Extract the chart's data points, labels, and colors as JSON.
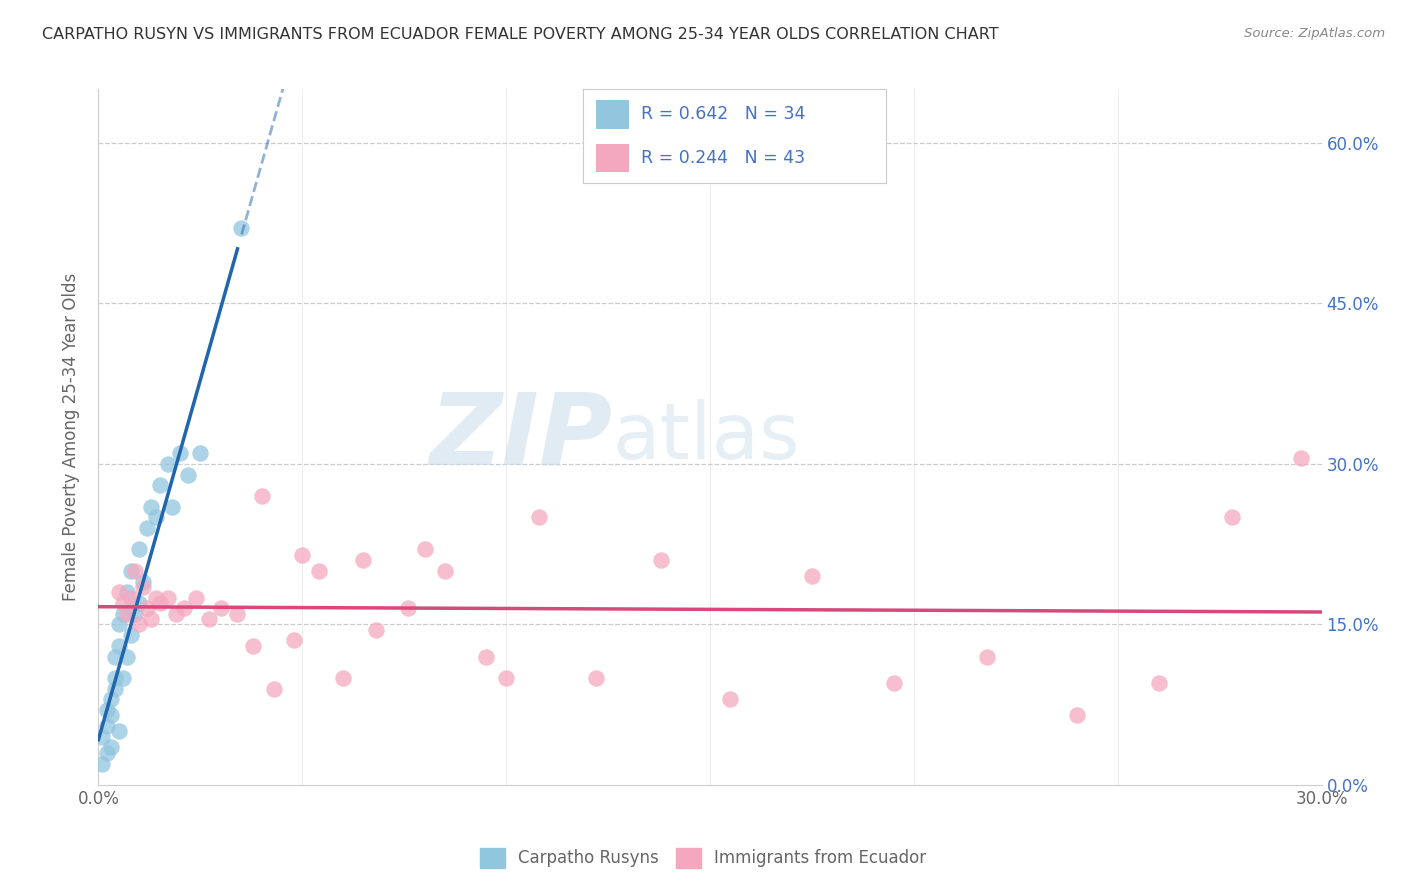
{
  "title": "CARPATHO RUSYN VS IMMIGRANTS FROM ECUADOR FEMALE POVERTY AMONG 25-34 YEAR OLDS CORRELATION CHART",
  "source": "Source: ZipAtlas.com",
  "ylabel": "Female Poverty Among 25-34 Year Olds",
  "R1": 0.642,
  "N1": 34,
  "R2": 0.244,
  "N2": 43,
  "blue_color": "#92c5de",
  "pink_color": "#f4a8c0",
  "blue_line_color": "#2166ac",
  "pink_line_color": "#d6497a",
  "legend_label1": "Carpatho Rusyns",
  "legend_label2": "Immigrants from Ecuador",
  "xlim": [
    0.0,
    0.3
  ],
  "ylim": [
    0.0,
    0.65
  ],
  "yticks": [
    0.0,
    0.15,
    0.3,
    0.45,
    0.6
  ],
  "text_color": "#4472c4",
  "axis_text_color": "#666666",
  "grid_color": "#cccccc",
  "title_color": "#333333",
  "blue_scatter_x": [
    0.001,
    0.001,
    0.002,
    0.002,
    0.002,
    0.003,
    0.003,
    0.003,
    0.004,
    0.004,
    0.004,
    0.005,
    0.005,
    0.005,
    0.006,
    0.006,
    0.007,
    0.007,
    0.008,
    0.008,
    0.009,
    0.01,
    0.01,
    0.011,
    0.012,
    0.013,
    0.014,
    0.015,
    0.017,
    0.018,
    0.02,
    0.022,
    0.025,
    0.035
  ],
  "blue_scatter_y": [
    0.02,
    0.045,
    0.03,
    0.055,
    0.07,
    0.035,
    0.065,
    0.08,
    0.09,
    0.1,
    0.12,
    0.05,
    0.13,
    0.15,
    0.1,
    0.16,
    0.12,
    0.18,
    0.14,
    0.2,
    0.16,
    0.17,
    0.22,
    0.19,
    0.24,
    0.26,
    0.25,
    0.28,
    0.3,
    0.26,
    0.31,
    0.29,
    0.31,
    0.52
  ],
  "pink_scatter_x": [
    0.005,
    0.006,
    0.007,
    0.008,
    0.009,
    0.01,
    0.011,
    0.012,
    0.013,
    0.014,
    0.015,
    0.017,
    0.019,
    0.021,
    0.024,
    0.027,
    0.03,
    0.034,
    0.038,
    0.043,
    0.048,
    0.054,
    0.06,
    0.068,
    0.076,
    0.085,
    0.095,
    0.108,
    0.122,
    0.138,
    0.155,
    0.175,
    0.195,
    0.218,
    0.24,
    0.26,
    0.278,
    0.295,
    0.04,
    0.05,
    0.065,
    0.08,
    0.1
  ],
  "pink_scatter_y": [
    0.18,
    0.17,
    0.16,
    0.175,
    0.2,
    0.15,
    0.185,
    0.165,
    0.155,
    0.175,
    0.17,
    0.175,
    0.16,
    0.165,
    0.175,
    0.155,
    0.165,
    0.16,
    0.13,
    0.09,
    0.135,
    0.2,
    0.1,
    0.145,
    0.165,
    0.2,
    0.12,
    0.25,
    0.1,
    0.21,
    0.08,
    0.195,
    0.095,
    0.12,
    0.065,
    0.095,
    0.25,
    0.305,
    0.27,
    0.215,
    0.21,
    0.22,
    0.1
  ]
}
